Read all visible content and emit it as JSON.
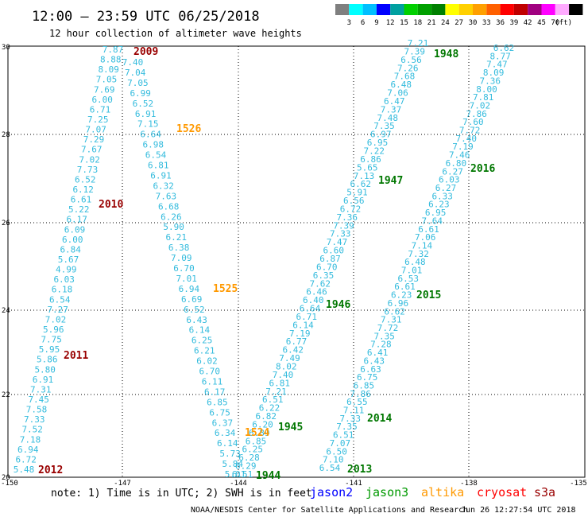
{
  "header": {
    "title": "12:00 – 23:59 UTC 06/25/2018",
    "subtitle": "12 hour collection of altimeter wave heights"
  },
  "color_scale": {
    "colors": [
      "#7f7f7f",
      "#00ffff",
      "#00bfff",
      "#0000ff",
      "#00a0a0",
      "#00d000",
      "#00a000",
      "#008000",
      "#ffff00",
      "#ffd000",
      "#ffa000",
      "#ff6000",
      "#ff0000",
      "#c00000",
      "#a00080",
      "#ff00ff",
      "#ffaaff",
      "#000000"
    ],
    "labels": [
      "3",
      "6",
      "9",
      "12",
      "15",
      "18",
      "21",
      "24",
      "27",
      "30",
      "33",
      "36",
      "39",
      "42",
      "45",
      "70",
      "(ft)"
    ]
  },
  "axes": {
    "lat_labels": [
      "30",
      "28",
      "26",
      "24",
      "22",
      "20"
    ],
    "lon_labels": [
      "-150",
      "-147",
      "-144",
      "-141",
      "-138",
      "-135"
    ]
  },
  "tracks": [
    {
      "values": [
        "7.87",
        "8.88",
        "8.09",
        "7.05",
        "7.69",
        "6.00",
        "6.71",
        "7.25",
        "7.07",
        "7.29",
        "7.67",
        "7.02",
        "7.73",
        "6.52",
        "6.12",
        "6.61",
        "5.22",
        "6.17",
        "6.09",
        "6.00",
        "6.84",
        "5.67",
        "4.99",
        "6.03",
        "6.18",
        "6.54",
        "7.27",
        "7.02",
        "5.96",
        "7.75",
        "5.95",
        "5.86",
        "5.80",
        "6.91",
        "7.31",
        "7.45",
        "7.58",
        "7.33",
        "7.52",
        "7.18",
        "6.94",
        "6.72",
        "5.48"
      ]
    },
    {
      "values": [
        "7.40",
        "7.04",
        "7.05",
        "6.99",
        "6.52",
        "6.91",
        "7.15",
        "6.64",
        "6.98",
        "6.54",
        "6.81",
        "6.91",
        "6.32",
        "7.63",
        "6.68",
        "6.26",
        "5.90",
        "6.21",
        "6.38",
        "7.09",
        "6.70",
        "7.01",
        "6.94",
        "6.69",
        "6.52",
        "6.43",
        "6.14",
        "6.25",
        "6.21",
        "6.02",
        "6.70",
        "6.11",
        "6.17",
        "6.85",
        "6.75",
        "6.37",
        "6.34",
        "6.14",
        "5.73",
        "5.84",
        "5.01"
      ]
    },
    {
      "values": [
        "7.21",
        "7.39",
        "6.56",
        "7.26",
        "7.68",
        "6.48",
        "7.06",
        "6.47",
        "7.37",
        "7.48",
        "7.35",
        "6.97",
        "6.95",
        "7.22",
        "6.86",
        "5.65",
        "7.13",
        "6.62",
        "5.91",
        "6.56",
        "6.72",
        "7.36",
        "7.39",
        "7.33",
        "7.47",
        "6.60",
        "6.87",
        "6.70",
        "6.35",
        "7.62",
        "6.46",
        "6.40",
        "6.64",
        "6.71",
        "6.14",
        "7.19",
        "6.77",
        "6.42",
        "7.49",
        "8.02",
        "7.40",
        "6.81",
        "7.21",
        "6.51",
        "6.22",
        "6.82",
        "6.20",
        "6.89",
        "6.85",
        "6.25",
        "6.28",
        "6.29",
        "6.51"
      ]
    },
    {
      "values": [
        "6.62",
        "8.77",
        "7.47",
        "8.09",
        "7.36",
        "8.00",
        "7.81",
        "7.02",
        "7.86",
        "7.60",
        "7.72",
        "7.40",
        "7.19",
        "7.46",
        "6.80",
        "6.27",
        "6.03",
        "6.27",
        "6.33",
        "6.23",
        "6.95",
        "7.64",
        "6.61",
        "7.06",
        "7.14",
        "7.32",
        "6.48",
        "7.01",
        "6.53",
        "6.61",
        "6.23",
        "6.96",
        "6.62",
        "7.31",
        "7.72",
        "7.35",
        "7.28",
        "6.41",
        "6.43",
        "6.63",
        "6.75",
        "6.85",
        "7.86",
        "6.55",
        "7.11",
        "7.33",
        "7.35",
        "6.51",
        "7.07",
        "6.50",
        "7.10",
        "6.54"
      ]
    }
  ],
  "labels": [
    {
      "text": "2009",
      "color": "#990000"
    },
    {
      "text": "2010",
      "color": "#990000"
    },
    {
      "text": "2011",
      "color": "#990000"
    },
    {
      "text": "2012",
      "color": "#990000"
    },
    {
      "text": "1526",
      "color": "#ff9900"
    },
    {
      "text": "1525",
      "color": "#ff9900"
    },
    {
      "text": "1524",
      "color": "#ff9900"
    },
    {
      "text": "1944",
      "color": "#007700"
    },
    {
      "text": "1945",
      "color": "#007700"
    },
    {
      "text": "1946",
      "color": "#007700"
    },
    {
      "text": "1947",
      "color": "#007700"
    },
    {
      "text": "1948",
      "color": "#007700"
    },
    {
      "text": "2013",
      "color": "#007700"
    },
    {
      "text": "2014",
      "color": "#007700"
    },
    {
      "text": "2015",
      "color": "#007700"
    },
    {
      "text": "2016",
      "color": "#007700"
    }
  ],
  "footer": {
    "note": "note: 1) Time is in UTC; 2) SWH is in feet",
    "satellites": [
      {
        "name": "jason2",
        "color": "#0000ff"
      },
      {
        "name": "jason3",
        "color": "#009900"
      },
      {
        "name": "altika",
        "color": "#ff9900"
      },
      {
        "name": "cryosat",
        "color": "#ff0000"
      },
      {
        "name": "s3a",
        "color": "#990000"
      }
    ],
    "credit": "NOAA/NESDIS Center for Satellite Applications and Research",
    "timestamp": "Jun 26 12:27:54 UTC 2018"
  }
}
